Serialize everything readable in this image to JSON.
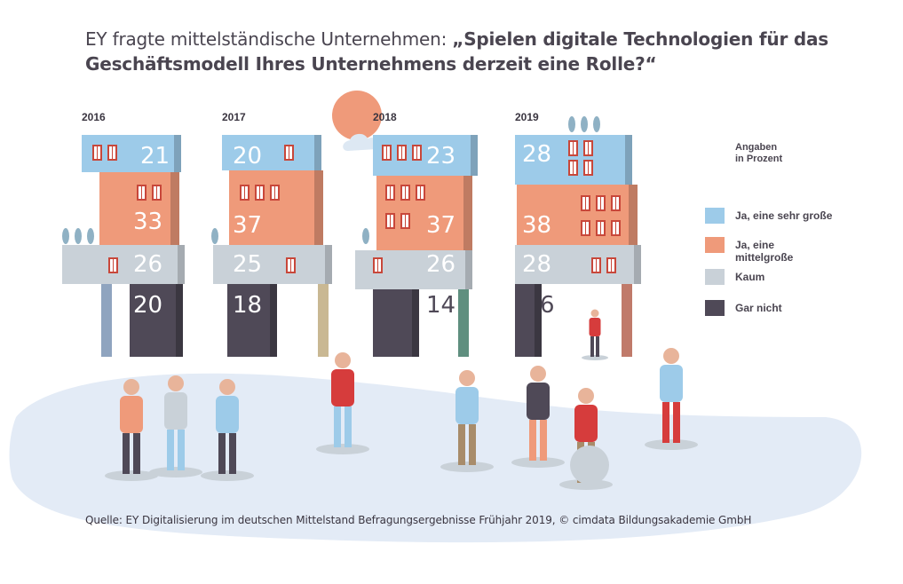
{
  "title": {
    "prefix": "EY fragte mittelständische Unternehmen: ",
    "question": "„Spielen digitale Technologien für das Geschäftsmodell Ihres Unternehmens derzeit eine Rolle?“"
  },
  "legend_note": "Angaben\nin Prozent",
  "source": "Quelle: EY Digitalisierung im deutschen Mittelstand Befragungsergebnisse Frühjahr 2019, © cimdata Bildungsakademie GmbH",
  "colors": {
    "sehr_gross": "#9dcbe9",
    "mittel": "#ef9a7a",
    "kaum": "#c9d1d8",
    "gar_nicht": "#4f4957",
    "ground": "#e3ebf6",
    "window": "#ffffff",
    "window_frame": "#c8473a"
  },
  "chart_data": {
    "type": "bar",
    "title": "EY fragte mittelständische Unternehmen: „Spielen digitale Technologien für das Geschäftsmodell Ihres Unternehmens derzeit eine Rolle?“",
    "unit": "Angaben in Prozent",
    "categories": [
      "2016",
      "2017",
      "2018",
      "2019"
    ],
    "stacked": true,
    "legend_position": "right",
    "grid": false,
    "series": [
      {
        "key": "sehr_gross",
        "name": "Ja, eine sehr große",
        "values": [
          21,
          20,
          23,
          28
        ]
      },
      {
        "key": "mittel",
        "name": "Ja, eine mittelgroße",
        "values": [
          33,
          37,
          37,
          38
        ]
      },
      {
        "key": "kaum",
        "name": "Kaum",
        "values": [
          26,
          25,
          26,
          28
        ]
      },
      {
        "key": "gar_nicht",
        "name": "Gar nicht",
        "values": [
          20,
          18,
          14,
          6
        ]
      }
    ]
  }
}
